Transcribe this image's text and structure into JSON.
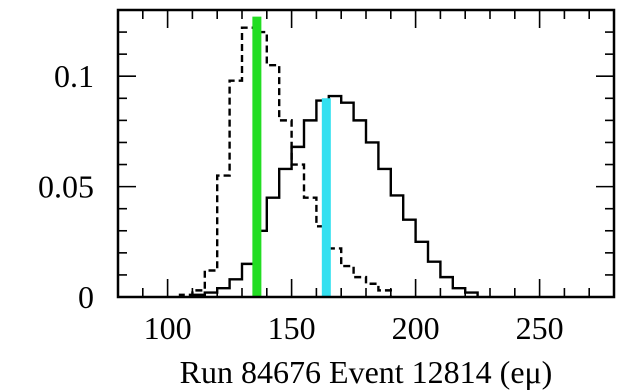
{
  "chart_data": {
    "type": "line",
    "xlabel": "Run 84676 Event 12814 (eμ)",
    "ylabel": "",
    "title": "",
    "xlim": [
      80,
      280
    ],
    "ylim": [
      0,
      0.13
    ],
    "x_ticks": [
      100,
      150,
      200,
      250
    ],
    "x_tick_labels": [
      "100",
      "150",
      "200",
      "250"
    ],
    "y_ticks": [
      0,
      0.05,
      0.1
    ],
    "y_tick_labels": [
      "0",
      "0.05",
      "0.1"
    ],
    "grid": false,
    "legend": "none",
    "bin_width": 5,
    "series": [
      {
        "style": "dashed",
        "color": "#000000",
        "bin_edges": [
          105,
          110,
          115,
          120,
          125,
          130,
          135,
          140,
          145,
          150,
          155,
          160,
          165,
          170,
          175,
          180,
          185,
          190
        ],
        "values": [
          0.001,
          0.003,
          0.012,
          0.055,
          0.098,
          0.122,
          0.12,
          0.105,
          0.08,
          0.06,
          0.045,
          0.032,
          0.022,
          0.014,
          0.009,
          0.006,
          0.003
        ]
      },
      {
        "style": "solid",
        "color": "#000000",
        "bin_edges": [
          110,
          115,
          120,
          125,
          130,
          135,
          140,
          145,
          150,
          155,
          160,
          165,
          170,
          175,
          180,
          185,
          190,
          195,
          200,
          205,
          210,
          215,
          220,
          225
        ],
        "values": [
          0.001,
          0.002,
          0.004,
          0.008,
          0.015,
          0.03,
          0.045,
          0.058,
          0.068,
          0.08,
          0.089,
          0.091,
          0.088,
          0.08,
          0.07,
          0.058,
          0.046,
          0.035,
          0.025,
          0.016,
          0.009,
          0.004,
          0.002
        ]
      }
    ],
    "markers": [
      {
        "x": 136,
        "y_top": 0.127,
        "color": "#22dd22"
      },
      {
        "x": 164,
        "y_top": 0.09,
        "color": "#33e0f0"
      }
    ]
  }
}
